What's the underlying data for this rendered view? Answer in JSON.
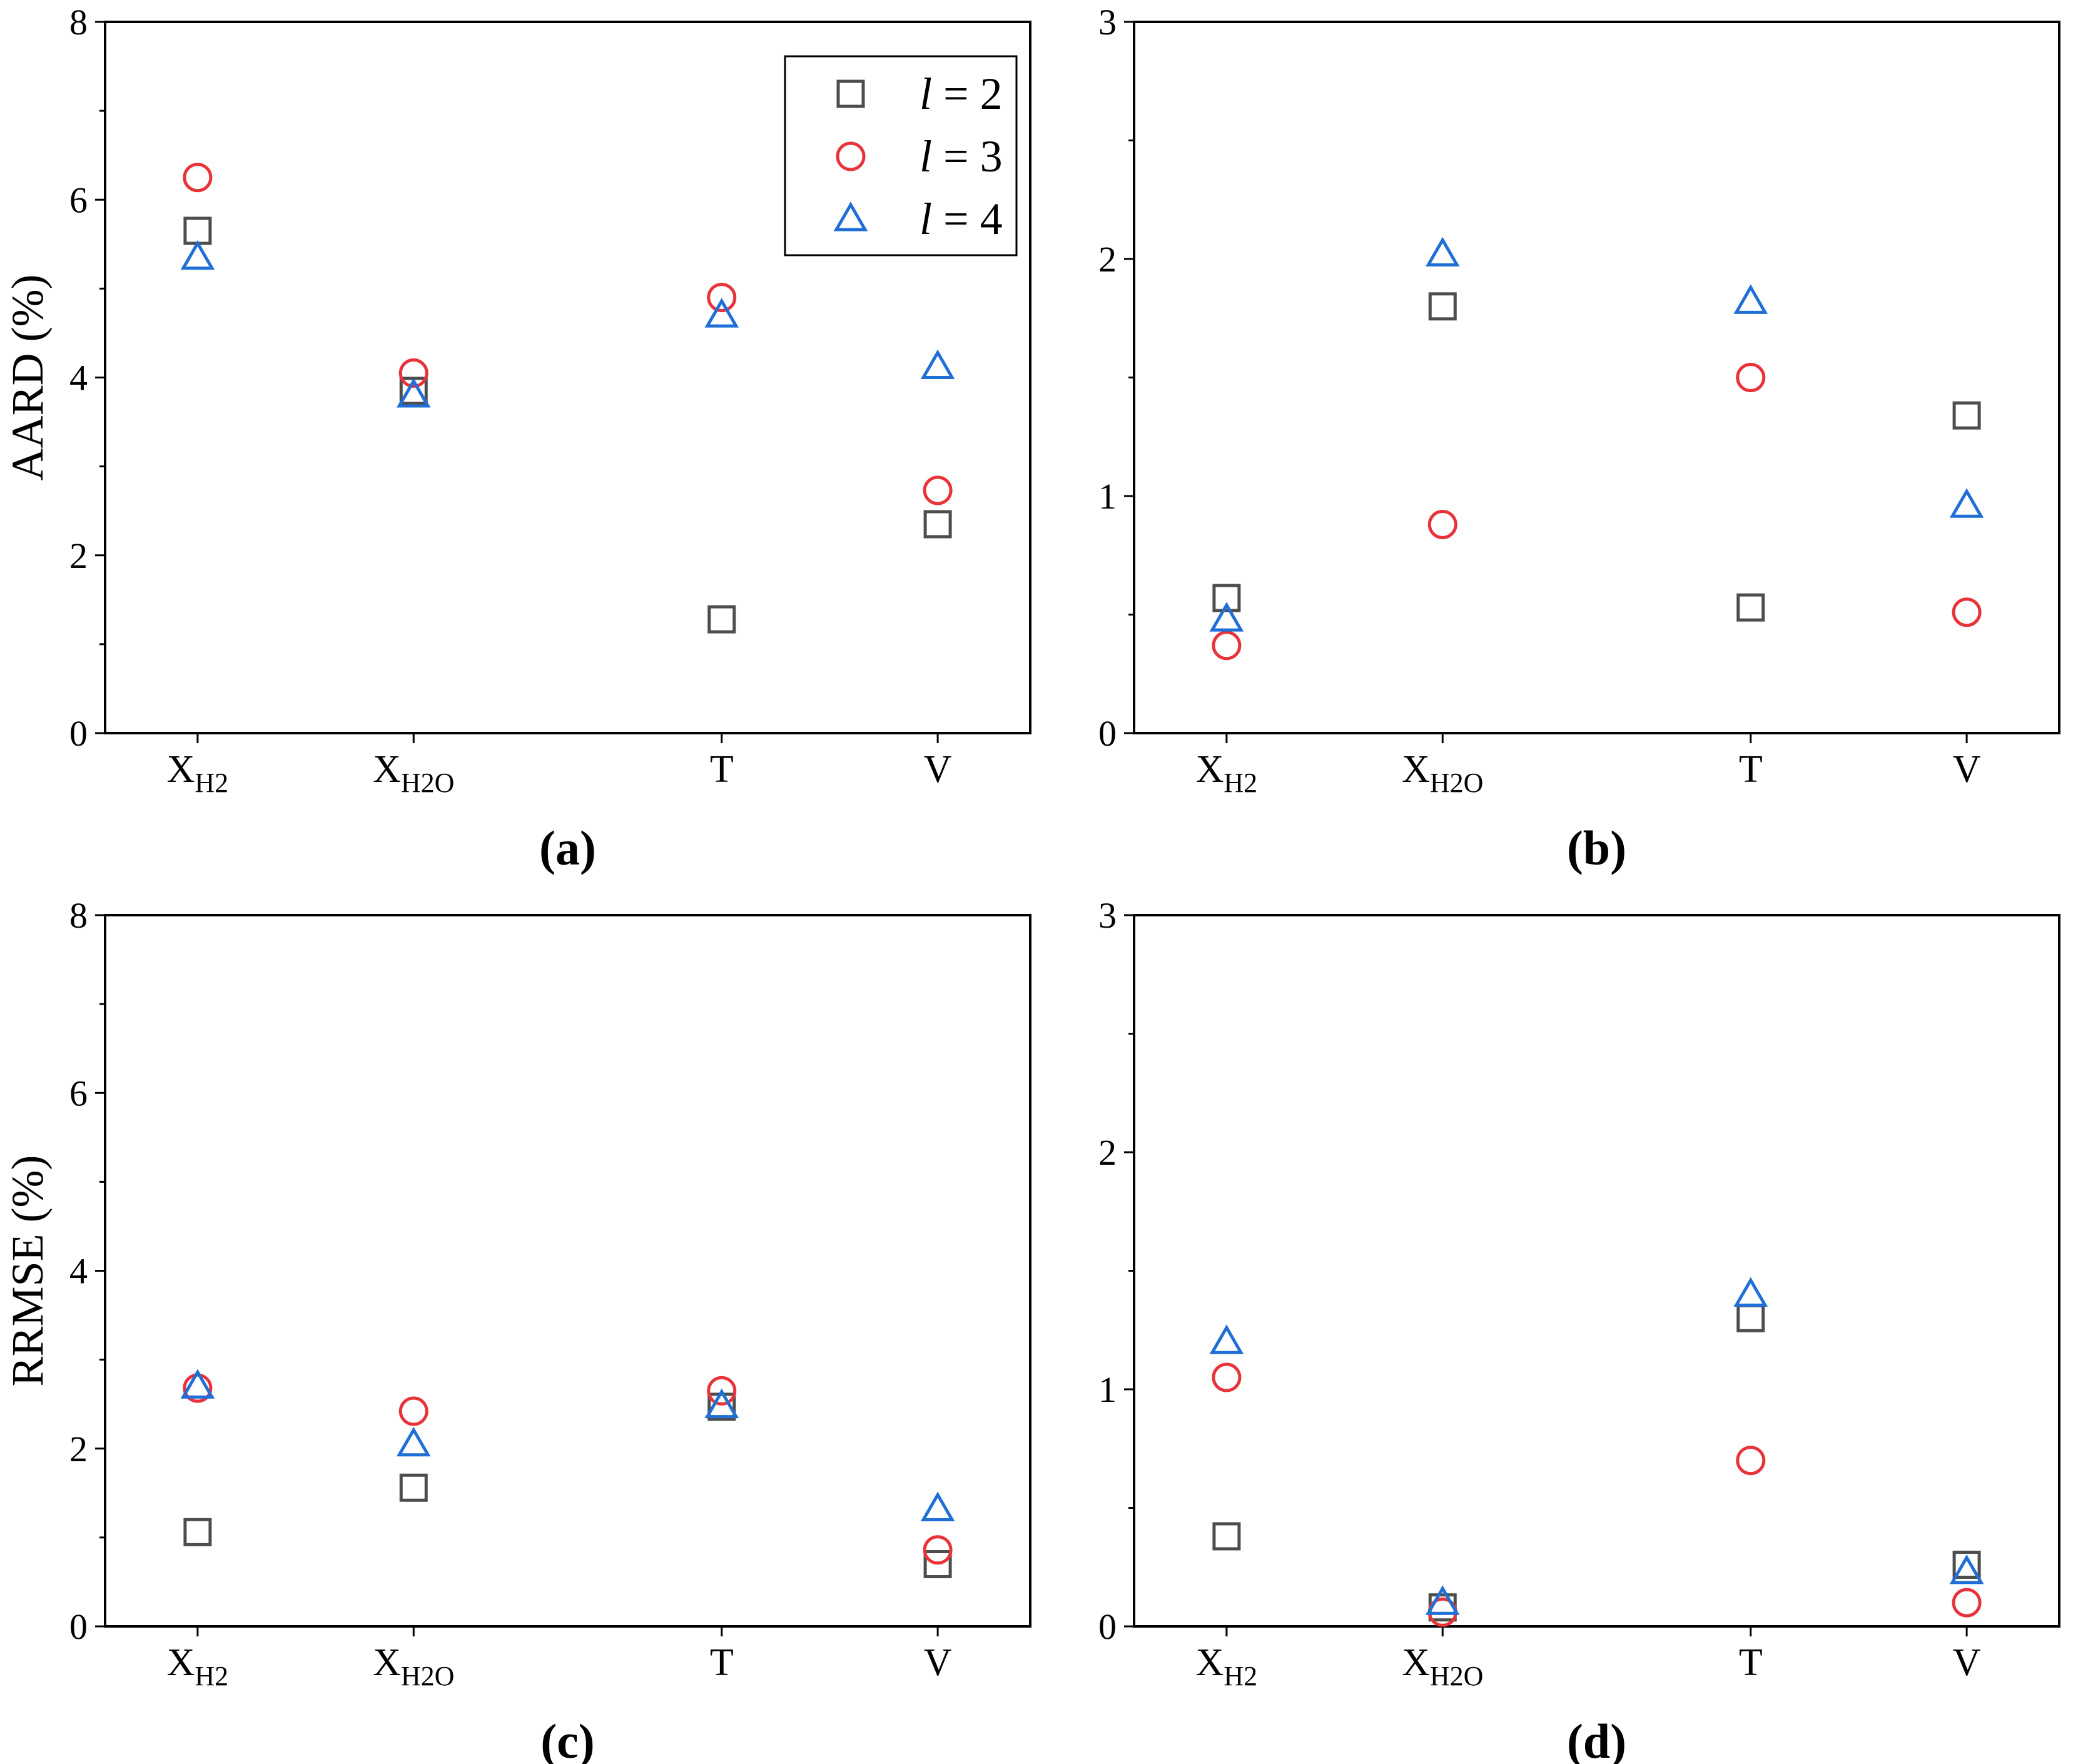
{
  "colors": {
    "l2": "#4d4d4d",
    "l3": "#e8333b",
    "l4": "#1f6fd6",
    "axis": "#000000"
  },
  "legend": {
    "items": [
      {
        "var": "l",
        "rest": " = 2",
        "series": "l2",
        "marker": "square"
      },
      {
        "var": "l",
        "rest": " = 3",
        "series": "l3",
        "marker": "circle"
      },
      {
        "var": "l",
        "rest": " = 4",
        "series": "l4",
        "marker": "triangle"
      }
    ]
  },
  "chart_data": [
    {
      "panel": "(a)",
      "type": "scatter",
      "ylabel": "AARD (%)",
      "ylim": [
        0,
        8
      ],
      "yticks": [
        0,
        2,
        4,
        6,
        8
      ],
      "categories": [
        {
          "main": "X",
          "sub": "H2"
        },
        {
          "main": "X",
          "sub": "H2O"
        },
        {
          "main": "T",
          "sub": ""
        },
        {
          "main": "V",
          "sub": ""
        }
      ],
      "series": [
        {
          "name": "l = 2",
          "key": "l2",
          "marker": "square",
          "values": [
            5.65,
            3.85,
            1.28,
            2.35
          ]
        },
        {
          "name": "l = 3",
          "key": "l3",
          "marker": "circle",
          "values": [
            6.25,
            4.05,
            4.9,
            2.73
          ]
        },
        {
          "name": "l = 4",
          "key": "l4",
          "marker": "triangle",
          "values": [
            5.35,
            3.8,
            4.7,
            4.12
          ]
        }
      ],
      "legend_position": "top-right"
    },
    {
      "panel": "(b)",
      "type": "scatter",
      "ylabel": "",
      "ylim": [
        0,
        3
      ],
      "yticks": [
        0,
        1,
        2,
        3
      ],
      "categories": [
        {
          "main": "X",
          "sub": "H2"
        },
        {
          "main": "X",
          "sub": "H2O"
        },
        {
          "main": "T",
          "sub": ""
        },
        {
          "main": "V",
          "sub": ""
        }
      ],
      "series": [
        {
          "name": "l = 2",
          "key": "l2",
          "marker": "square",
          "values": [
            0.57,
            1.8,
            0.53,
            1.34
          ]
        },
        {
          "name": "l = 3",
          "key": "l3",
          "marker": "circle",
          "values": [
            0.37,
            0.88,
            1.5,
            0.51
          ]
        },
        {
          "name": "l = 4",
          "key": "l4",
          "marker": "triangle",
          "values": [
            0.48,
            2.02,
            1.82,
            0.96
          ]
        }
      ]
    },
    {
      "panel": "(c)",
      "type": "scatter",
      "ylabel": "RRMSE (%)",
      "ylim": [
        0,
        8
      ],
      "yticks": [
        0,
        2,
        4,
        6,
        8
      ],
      "categories": [
        {
          "main": "X",
          "sub": "H2"
        },
        {
          "main": "X",
          "sub": "H2O"
        },
        {
          "main": "T",
          "sub": ""
        },
        {
          "main": "V",
          "sub": ""
        }
      ],
      "series": [
        {
          "name": "l = 2",
          "key": "l2",
          "marker": "square",
          "values": [
            1.06,
            1.56,
            2.47,
            0.7
          ]
        },
        {
          "name": "l = 3",
          "key": "l3",
          "marker": "circle",
          "values": [
            2.68,
            2.42,
            2.65,
            0.86
          ]
        },
        {
          "name": "l = 4",
          "key": "l4",
          "marker": "triangle",
          "values": [
            2.7,
            2.05,
            2.48,
            1.32
          ]
        }
      ]
    },
    {
      "panel": "(d)",
      "type": "scatter",
      "ylabel": "",
      "ylim": [
        0,
        3
      ],
      "yticks": [
        0,
        1,
        2,
        3
      ],
      "categories": [
        {
          "main": "X",
          "sub": "H2"
        },
        {
          "main": "X",
          "sub": "H2O"
        },
        {
          "main": "T",
          "sub": ""
        },
        {
          "main": "V",
          "sub": ""
        }
      ],
      "series": [
        {
          "name": "l = 2",
          "key": "l2",
          "marker": "square",
          "values": [
            0.38,
            0.08,
            1.3,
            0.26
          ]
        },
        {
          "name": "l = 3",
          "key": "l3",
          "marker": "circle",
          "values": [
            1.05,
            0.06,
            0.7,
            0.1
          ]
        },
        {
          "name": "l = 4",
          "key": "l4",
          "marker": "triangle",
          "values": [
            1.2,
            0.1,
            1.4,
            0.23
          ]
        }
      ]
    }
  ]
}
